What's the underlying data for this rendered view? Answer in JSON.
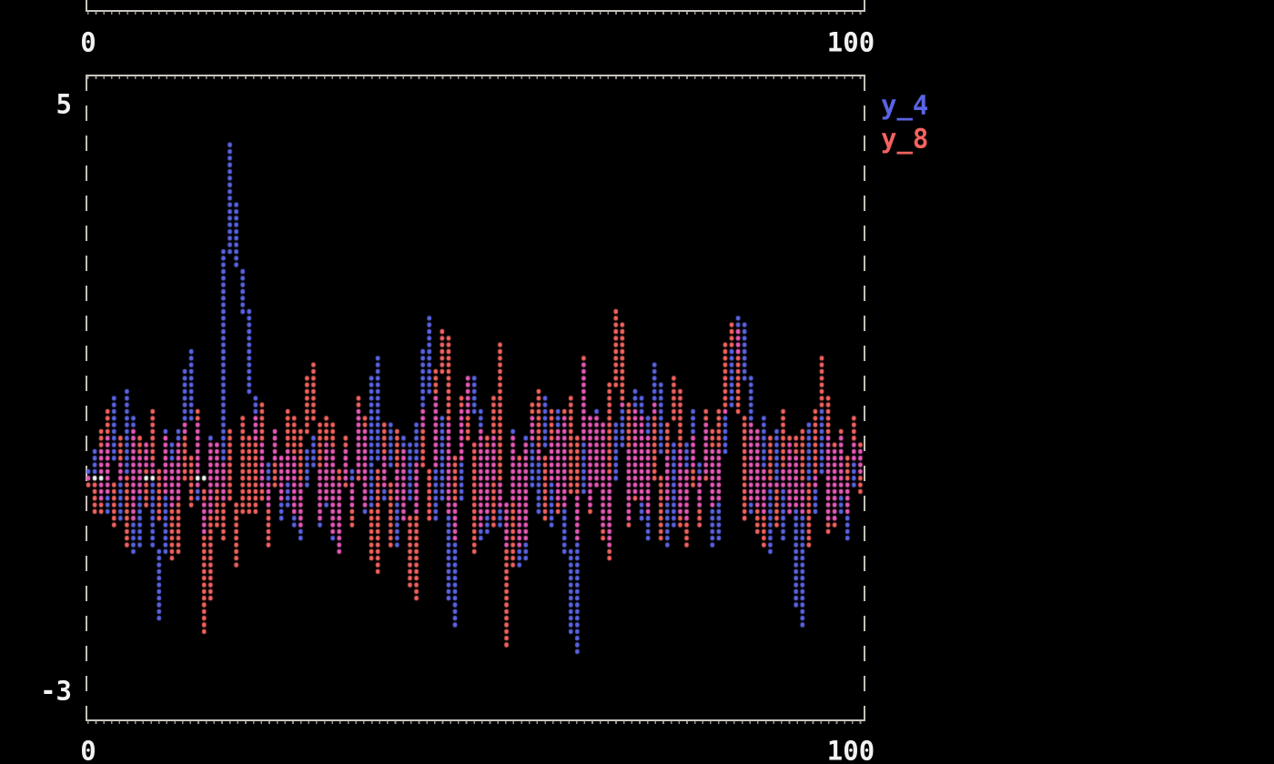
{
  "colors": {
    "background": "#000000",
    "border": "#c9c5bd",
    "label": "#f2f2f2",
    "series_blue": "#5a64e4",
    "series_red": "#f4635f",
    "overlap_magenta": "#e85ab8",
    "zero_white": "#f0f0ee"
  },
  "top_plot_fragment": {
    "x_left_label": "0",
    "x_right_label": "100"
  },
  "main_plot": {
    "y_top_label": "5",
    "y_bottom_label": "-3",
    "x_left_label": "0",
    "x_right_label": "100",
    "legend": [
      {
        "label": "y_4",
        "color": "#5a64e4"
      },
      {
        "label": "y_8",
        "color": "#f4635f"
      }
    ]
  },
  "chart_data": {
    "type": "line",
    "style": "terminal-braille-dots",
    "title": "",
    "xlabel": "",
    "ylabel": "",
    "x_start": 0,
    "x_step": 1,
    "x_range": [
      0,
      100
    ],
    "y_tick_labels": [
      5,
      -3
    ],
    "ylim_labeled": [
      -3,
      5
    ],
    "grid": false,
    "legend_position": "top-right-outside",
    "series": [
      {
        "name": "y_4",
        "color": "#5a64e4",
        "values": [
          0.0,
          0.35,
          -0.45,
          1.05,
          -0.6,
          1.2,
          -1.0,
          0.45,
          0.05,
          -1.95,
          0.6,
          -0.35,
          0.8,
          1.7,
          -0.1,
          -0.75,
          0.5,
          -0.25,
          4.55,
          3.0,
          2.55,
          1.15,
          0.4,
          -0.35,
          0.65,
          -0.55,
          0.3,
          -0.85,
          0.25,
          0.55,
          -0.65,
          0.45,
          -1.05,
          0.35,
          -0.4,
          0.9,
          -0.5,
          1.6,
          -0.3,
          0.7,
          -0.9,
          0.5,
          -0.45,
          1.2,
          2.15,
          -0.6,
          0.8,
          -2.05,
          0.4,
          1.35,
          1.3,
          -0.8,
          0.5,
          -0.3,
          -0.9,
          0.6,
          -1.2,
          0.8,
          -0.5,
          1.1,
          -0.7,
          0.9,
          -1.3,
          -2.4,
          1.5,
          -0.4,
          0.85,
          -0.9,
          0.3,
          1.0,
          -0.6,
          1.2,
          -0.8,
          1.5,
          1.05,
          -0.95,
          0.4,
          -0.6,
          0.9,
          -0.4,
          0.7,
          -0.9,
          0.5,
          1.1,
          2.15,
          1.9,
          -0.5,
          0.8,
          -1.0,
          0.6,
          -0.8,
          0.4,
          -2.05,
          0.7,
          -0.5,
          0.9,
          -0.6,
          0.5,
          -0.85,
          0.45,
          0.1
        ]
      },
      {
        "name": "y_8",
        "color": "#f4635f",
        "values": [
          0.0,
          -0.5,
          0.85,
          -0.7,
          0.5,
          -0.9,
          0.6,
          -0.4,
          0.85,
          -0.6,
          0.5,
          -1.1,
          0.7,
          -0.4,
          0.9,
          -2.1,
          0.45,
          -0.8,
          0.6,
          -1.2,
          0.8,
          -0.5,
          1.0,
          -0.9,
          0.6,
          -0.3,
          0.9,
          -0.7,
          1.2,
          1.5,
          -0.6,
          0.8,
          -1.0,
          0.5,
          -0.7,
          1.1,
          -0.4,
          -1.3,
          0.7,
          -0.9,
          0.6,
          -0.5,
          -1.7,
          0.9,
          -0.6,
          1.3,
          2.0,
          -0.8,
          0.7,
          1.35,
          -1.0,
          0.6,
          -0.7,
          1.76,
          -2.27,
          0.5,
          -0.9,
          0.7,
          1.2,
          -0.6,
          0.9,
          -0.5,
          1.1,
          -0.8,
          1.65,
          -0.45,
          0.8,
          -1.1,
          2.25,
          2.0,
          -0.7,
          0.9,
          -0.5,
          1.0,
          -0.85,
          0.6,
          1.3,
          -0.9,
          0.5,
          -0.65,
          0.9,
          -0.4,
          1.05,
          2.1,
          1.8,
          -0.6,
          0.75,
          -0.95,
          0.55,
          -0.7,
          0.85,
          -0.5,
          0.65,
          -0.9,
          0.5,
          1.6,
          -0.75,
          0.6,
          -0.5,
          0.8,
          -0.2
        ]
      }
    ],
    "zero_line_white_segments": [
      [
        0.5,
        1.6
      ],
      [
        7.2,
        8.2
      ],
      [
        13.6,
        15.0
      ]
    ]
  }
}
